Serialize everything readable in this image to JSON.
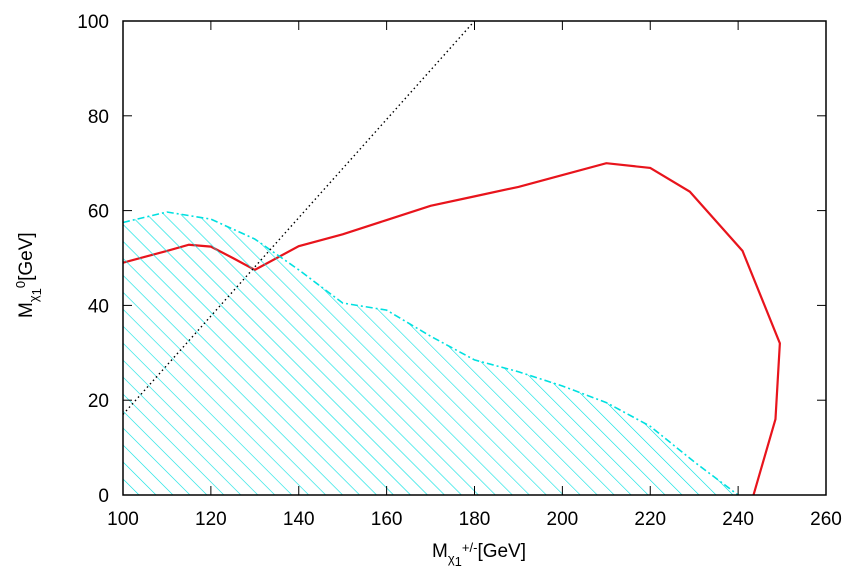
{
  "chart_data": {
    "type": "line",
    "title": "",
    "xlabel": {
      "main": "M",
      "sub": "χ",
      "sub_sub": "1",
      "sup": "+/-",
      "unit": "[GeV]"
    },
    "ylabel": {
      "main": "M",
      "sub": "χ",
      "sub_sub": "1",
      "sup": "0",
      "unit": "[GeV]"
    },
    "xlim": [
      100,
      260
    ],
    "ylim": [
      0,
      100
    ],
    "xticks": [
      "100",
      "120",
      "140",
      "160",
      "180",
      "200",
      "220",
      "240",
      "260"
    ],
    "yticks": [
      "0",
      "20",
      "40",
      "60",
      "80",
      "100"
    ],
    "grid": false,
    "legend": "none",
    "series": [
      {
        "style": "solid",
        "color": "#e8141c",
        "points": [
          [
            100,
            49
          ],
          [
            110,
            51.5
          ],
          [
            115,
            52.8
          ],
          [
            120,
            52.4
          ],
          [
            125,
            50
          ],
          [
            130,
            47.5
          ],
          [
            140,
            52.5
          ],
          [
            150,
            55
          ],
          [
            160,
            58
          ],
          [
            170,
            61
          ],
          [
            180,
            63
          ],
          [
            190,
            65
          ],
          [
            200,
            67.5
          ],
          [
            210,
            70
          ],
          [
            220,
            69
          ],
          [
            229,
            64
          ],
          [
            241,
            51.5
          ],
          [
            249.5,
            32
          ],
          [
            248.5,
            16
          ],
          [
            243.5,
            0
          ]
        ]
      },
      {
        "style": "dash-dot",
        "color": "#00e0e0",
        "fill": "hatched",
        "points": [
          [
            100,
            57.5
          ],
          [
            110,
            59.7
          ],
          [
            120,
            58.2
          ],
          [
            130,
            54
          ],
          [
            140,
            47.5
          ],
          [
            150,
            40.5
          ],
          [
            160,
            39
          ],
          [
            170,
            33.5
          ],
          [
            180,
            28.5
          ],
          [
            190,
            26
          ],
          [
            200,
            23
          ],
          [
            210,
            19.5
          ],
          [
            220,
            14.5
          ],
          [
            230,
            7
          ],
          [
            240,
            0
          ]
        ]
      },
      {
        "style": "dotted",
        "color": "#000000",
        "points": [
          [
            100,
            17
          ],
          [
            180,
            100
          ]
        ]
      }
    ]
  }
}
